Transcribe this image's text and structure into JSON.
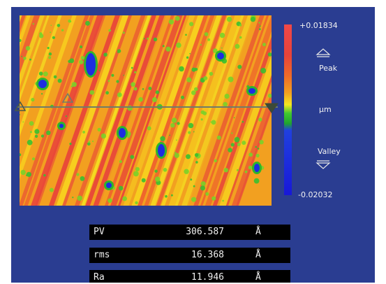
{
  "color_scale": {
    "max_label": "+0.01834",
    "peak_label": "Peak",
    "unit_label": "µm",
    "valley_label": "Valley",
    "min_label": "-0.02032"
  },
  "colors": {
    "background": "#2a3d91",
    "peak": "#e8433a",
    "valley": "#1d2ee0",
    "profile_line": "#6f7d6a"
  },
  "stats": [
    {
      "name": "PV",
      "value": "306.587",
      "unit": "Å"
    },
    {
      "name": "rms",
      "value": "16.368",
      "unit": "Å"
    },
    {
      "name": "Ra",
      "value": "11.946",
      "unit": "Å"
    }
  ]
}
